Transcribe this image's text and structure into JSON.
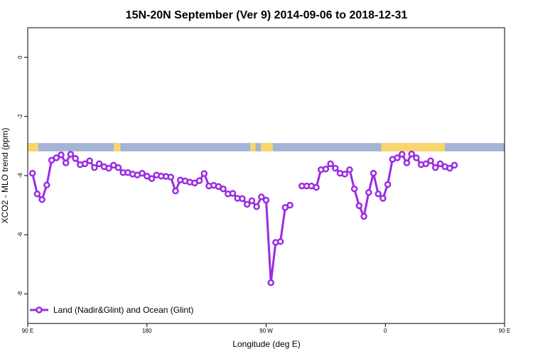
{
  "chart_data": {
    "type": "line",
    "title": "15N-20N September (Ver 9)   2014-09-06 to 2018-12-31",
    "xlabel": "Longitude (deg E)",
    "ylabel": "XCO2 - MLO trend (ppm)",
    "xlim": [
      90,
      450
    ],
    "ylim": [
      -9.0,
      1.0
    ],
    "grid": false,
    "legend_position": "bottom-left",
    "x_ticks": [
      {
        "value": 90,
        "label": "90 E"
      },
      {
        "value": 180,
        "label": "180"
      },
      {
        "value": 270,
        "label": "90 W"
      },
      {
        "value": 360,
        "label": "0"
      },
      {
        "value": 450,
        "label": "90 E"
      },
      {
        "value": 540,
        "label": "180"
      }
    ],
    "y_ticks": [
      {
        "value": 0,
        "label": "0"
      },
      {
        "value": -2,
        "label": "-2"
      },
      {
        "value": -4,
        "label": "-4"
      },
      {
        "value": -6,
        "label": "-6"
      },
      {
        "value": -8,
        "label": "-8"
      }
    ],
    "colors": {
      "series": "#9a2be2",
      "ocean": "#a2b5d6",
      "land": "#f9d66c"
    },
    "land_strip": {
      "y_top": -2.9,
      "y_bottom": -3.18,
      "land_segments": [
        [
          90,
          98
        ],
        [
          155,
          160
        ],
        [
          258,
          262
        ],
        [
          266,
          275
        ],
        [
          357,
          405
        ],
        [
          497,
          500
        ],
        [
          522,
          536
        ],
        [
          546,
          551
        ]
      ]
    },
    "series": [
      {
        "name": "Land (Nadir&Glint) and Ocean (Glint)",
        "points": [
          [
            93.6,
            -3.92
          ],
          [
            97.2,
            -4.62
          ],
          [
            100.8,
            -4.81
          ],
          [
            104.4,
            -4.32
          ],
          [
            108.0,
            -3.48
          ],
          [
            111.6,
            -3.4
          ],
          [
            115.2,
            -3.3
          ],
          [
            118.8,
            -3.57
          ],
          [
            122.4,
            -3.28
          ],
          [
            126.0,
            -3.42
          ],
          [
            129.6,
            -3.63
          ],
          [
            133.2,
            -3.6
          ],
          [
            136.8,
            -3.5
          ],
          [
            140.4,
            -3.73
          ],
          [
            144.0,
            -3.6
          ],
          [
            147.6,
            -3.7
          ],
          [
            151.2,
            -3.75
          ],
          [
            154.8,
            -3.65
          ],
          [
            158.4,
            -3.73
          ],
          [
            162.0,
            -3.9
          ],
          [
            165.6,
            -3.9
          ],
          [
            169.2,
            -3.95
          ],
          [
            172.8,
            -3.98
          ],
          [
            176.4,
            -3.92
          ],
          [
            180.0,
            -4.02
          ],
          [
            183.6,
            -4.1
          ],
          [
            187.2,
            -3.98
          ],
          [
            190.8,
            -4.02
          ],
          [
            194.4,
            -4.03
          ],
          [
            198.0,
            -4.05
          ],
          [
            201.6,
            -4.52
          ],
          [
            205.2,
            -4.15
          ],
          [
            208.8,
            -4.18
          ],
          [
            212.4,
            -4.22
          ],
          [
            216.0,
            -4.25
          ],
          [
            219.6,
            -4.17
          ],
          [
            223.2,
            -3.93
          ],
          [
            226.8,
            -4.35
          ],
          [
            230.4,
            -4.33
          ],
          [
            234.0,
            -4.37
          ],
          [
            237.6,
            -4.45
          ],
          [
            241.2,
            -4.62
          ],
          [
            244.8,
            -4.6
          ],
          [
            248.4,
            -4.77
          ],
          [
            252.0,
            -4.78
          ],
          [
            255.6,
            -4.97
          ],
          [
            259.2,
            -4.85
          ],
          [
            262.8,
            -5.05
          ],
          [
            266.4,
            -4.72
          ],
          [
            270.0,
            -4.83
          ],
          [
            273.6,
            -7.62
          ],
          [
            277.2,
            -6.26
          ],
          [
            280.8,
            -6.23
          ],
          [
            284.4,
            -5.08
          ],
          [
            288.0,
            -5.0
          ],
          [
            297.0,
            -4.35
          ],
          [
            300.6,
            -4.35
          ],
          [
            304.2,
            -4.35
          ],
          [
            307.8,
            -4.4
          ],
          [
            311.4,
            -3.8
          ],
          [
            315.0,
            -3.78
          ],
          [
            318.6,
            -3.6
          ],
          [
            322.2,
            -3.75
          ],
          [
            325.8,
            -3.92
          ],
          [
            329.4,
            -3.95
          ],
          [
            333.0,
            -3.8
          ],
          [
            336.6,
            -4.45
          ],
          [
            340.2,
            -5.02
          ],
          [
            343.8,
            -5.38
          ],
          [
            347.4,
            -4.57
          ],
          [
            351.0,
            -3.92
          ],
          [
            354.6,
            -4.62
          ],
          [
            358.2,
            -4.77
          ],
          [
            361.8,
            -4.3
          ],
          [
            365.4,
            -3.45
          ],
          [
            369.0,
            -3.4
          ],
          [
            372.6,
            -3.28
          ],
          [
            376.2,
            -3.57
          ],
          [
            379.8,
            -3.27
          ],
          [
            383.4,
            -3.4
          ],
          [
            387.0,
            -3.63
          ],
          [
            390.6,
            -3.6
          ],
          [
            394.2,
            -3.5
          ],
          [
            397.8,
            -3.73
          ],
          [
            401.4,
            -3.6
          ],
          [
            405.0,
            -3.7
          ],
          [
            408.6,
            -3.75
          ],
          [
            412.2,
            -3.65
          ]
        ]
      }
    ]
  }
}
